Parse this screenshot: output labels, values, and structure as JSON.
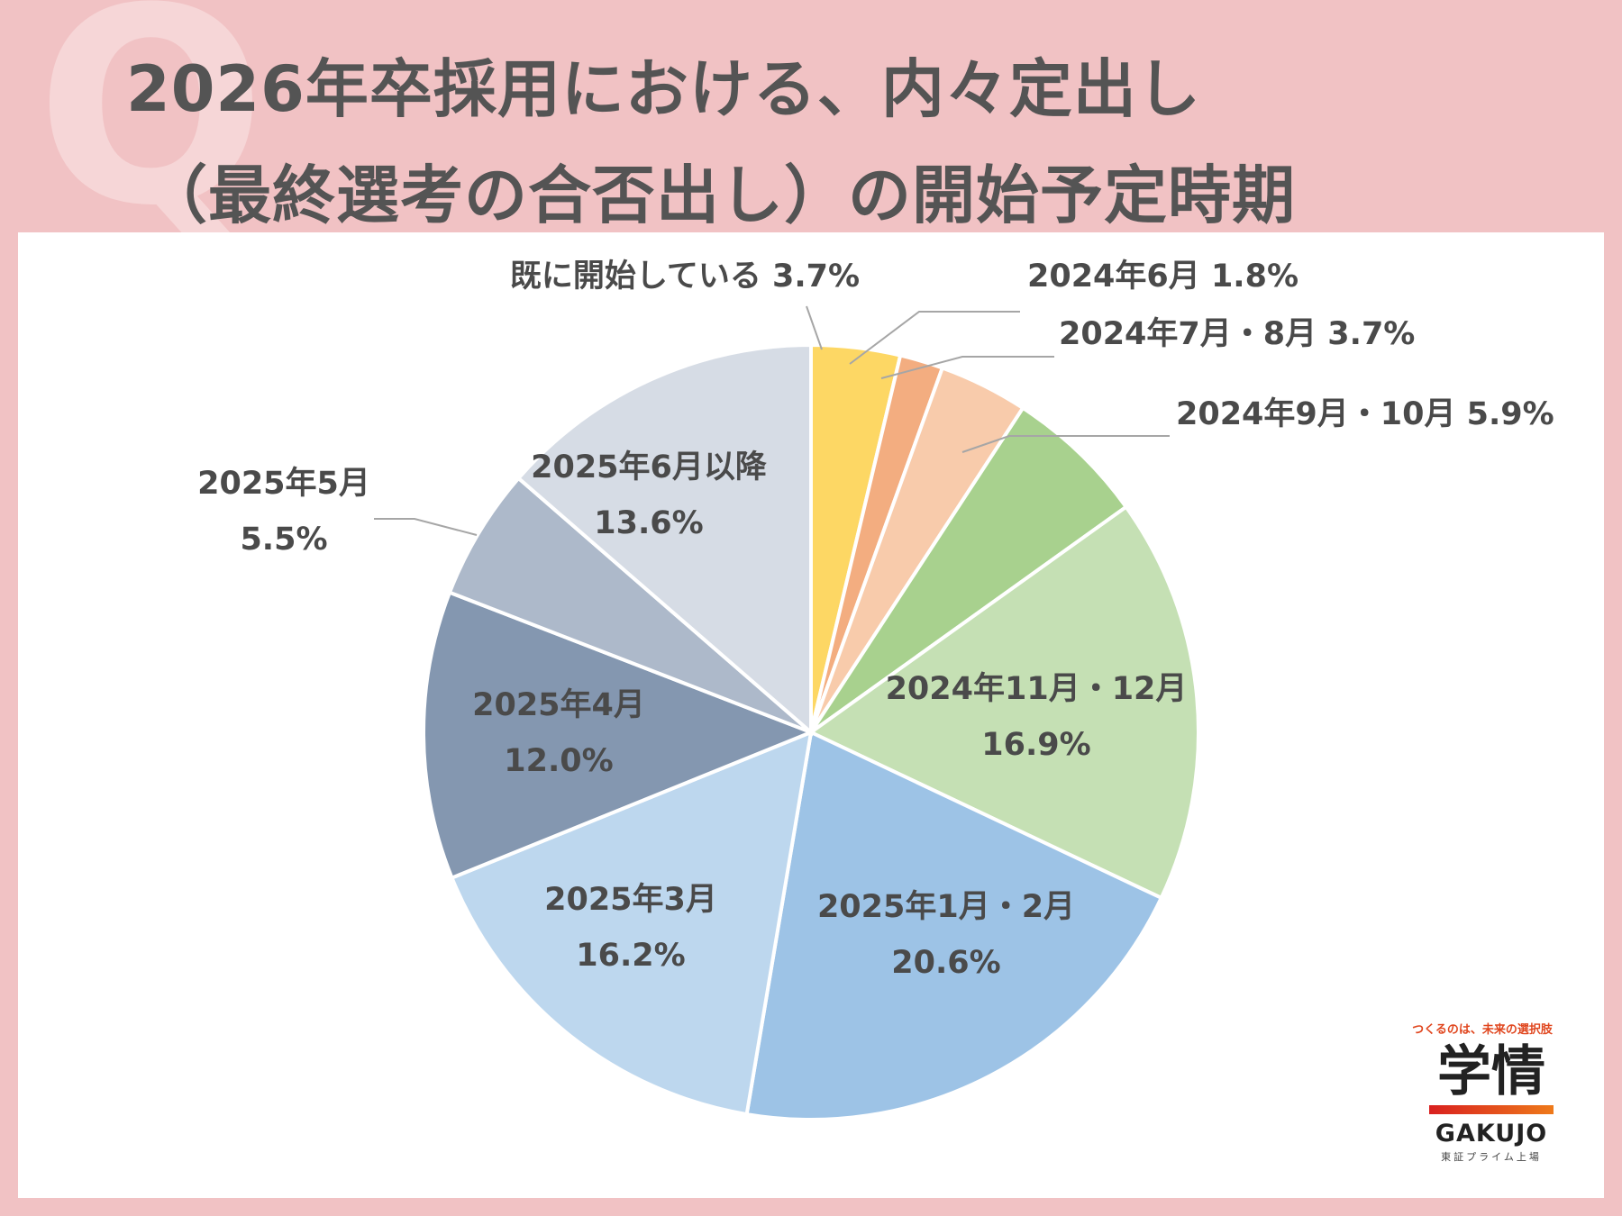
{
  "title": {
    "line1": "2026年卒採用における、内々定出し",
    "line2": "（最終選考の合否出し）の開始予定時期"
  },
  "logo": {
    "tagline": "つくるのは、未来の選択肢",
    "kanji": "学情",
    "name": "GAKUJO",
    "sub": "東証プライム上場"
  },
  "chart_data": {
    "type": "pie",
    "start_angle_deg": 0,
    "direction": "clockwise",
    "slices": [
      {
        "label": "既に開始している",
        "value": 3.7,
        "value_text": "3.7%",
        "color": "#fdd764",
        "label_pos": "outside"
      },
      {
        "label": "2024年6月",
        "value": 1.8,
        "value_text": "1.8%",
        "color": "#f3ad80",
        "label_pos": "outside"
      },
      {
        "label": "2024年7月・8月",
        "value": 3.7,
        "value_text": "3.7%",
        "color": "#f8cbab",
        "label_pos": "outside"
      },
      {
        "label": "2024年9月・10月",
        "value": 5.9,
        "value_text": "5.9%",
        "color": "#a8d18e",
        "label_pos": "outside"
      },
      {
        "label": "2024年11月・12月",
        "value": 16.9,
        "value_text": "16.9%",
        "color": "#c5e0b4",
        "label_pos": "inside"
      },
      {
        "label": "2025年1月・2月",
        "value": 20.6,
        "value_text": "20.6%",
        "color": "#9dc3e6",
        "label_pos": "inside"
      },
      {
        "label": "2025年3月",
        "value": 16.2,
        "value_text": "16.2%",
        "color": "#bdd7ee",
        "label_pos": "inside"
      },
      {
        "label": "2025年4月",
        "value": 12.0,
        "value_text": "12.0%",
        "color": "#8497b0",
        "label_pos": "inside"
      },
      {
        "label": "2025年5月",
        "value": 5.5,
        "value_text": "5.5%",
        "color": "#adb9ca",
        "label_pos": "outside"
      },
      {
        "label": "2025年6月以降",
        "value": 13.6,
        "value_text": "13.6%",
        "color": "#d6dce5",
        "label_pos": "inside"
      }
    ]
  }
}
